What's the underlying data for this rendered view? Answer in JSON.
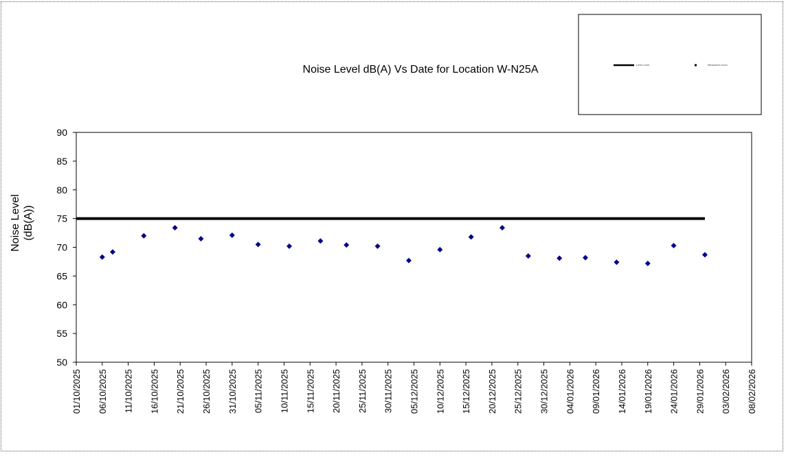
{
  "chart_data": {
    "type": "scatter",
    "title": "Noise Level dB(A) Vs Date for Location W-N25A",
    "xlabel": "",
    "ylabel_lines": [
      "Noise Level",
      "(dB(A))"
    ],
    "ylim": [
      50,
      90
    ],
    "yticks": [
      50,
      55,
      60,
      65,
      70,
      75,
      80,
      85,
      90
    ],
    "xlim": [
      "2025-10-01",
      "2026-02-08"
    ],
    "xticks": [
      "01/10/2025",
      "06/10/2025",
      "11/10/2025",
      "16/10/2025",
      "21/10/2025",
      "26/10/2025",
      "31/10/2025",
      "05/11/2025",
      "10/11/2025",
      "15/11/2025",
      "20/11/2025",
      "25/11/2025",
      "30/11/2025",
      "05/12/2025",
      "10/12/2025",
      "15/12/2025",
      "20/12/2025",
      "25/12/2025",
      "30/12/2025",
      "04/01/2026",
      "09/01/2026",
      "14/01/2026",
      "19/01/2026",
      "24/01/2026",
      "29/01/2026",
      "03/02/2026",
      "08/02/2026"
    ],
    "grid": false,
    "legend_position": "top-right",
    "series": [
      {
        "name": "Limit Level",
        "kind": "line",
        "color": "#000000",
        "x": [
          "2025-10-01",
          "2026-01-30"
        ],
        "y": [
          75,
          75
        ]
      },
      {
        "name": "Measured Level",
        "kind": "scatter",
        "color": "#00008B",
        "x": [
          "2025-10-06",
          "2025-10-08",
          "2025-10-14",
          "2025-10-20",
          "2025-10-25",
          "2025-10-31",
          "2025-11-05",
          "2025-11-11",
          "2025-11-17",
          "2025-11-22",
          "2025-11-28",
          "2025-12-04",
          "2025-12-10",
          "2025-12-16",
          "2025-12-22",
          "2025-12-27",
          "2026-01-02",
          "2026-01-07",
          "2026-01-13",
          "2026-01-19",
          "2026-01-24",
          "2026-01-30"
        ],
        "y": [
          68.3,
          69.2,
          72.0,
          73.4,
          71.5,
          72.1,
          70.5,
          70.2,
          71.1,
          70.4,
          70.2,
          67.7,
          69.6,
          71.8,
          73.4,
          68.5,
          68.1,
          68.2,
          67.4,
          67.2,
          70.3,
          68.7
        ]
      }
    ]
  }
}
